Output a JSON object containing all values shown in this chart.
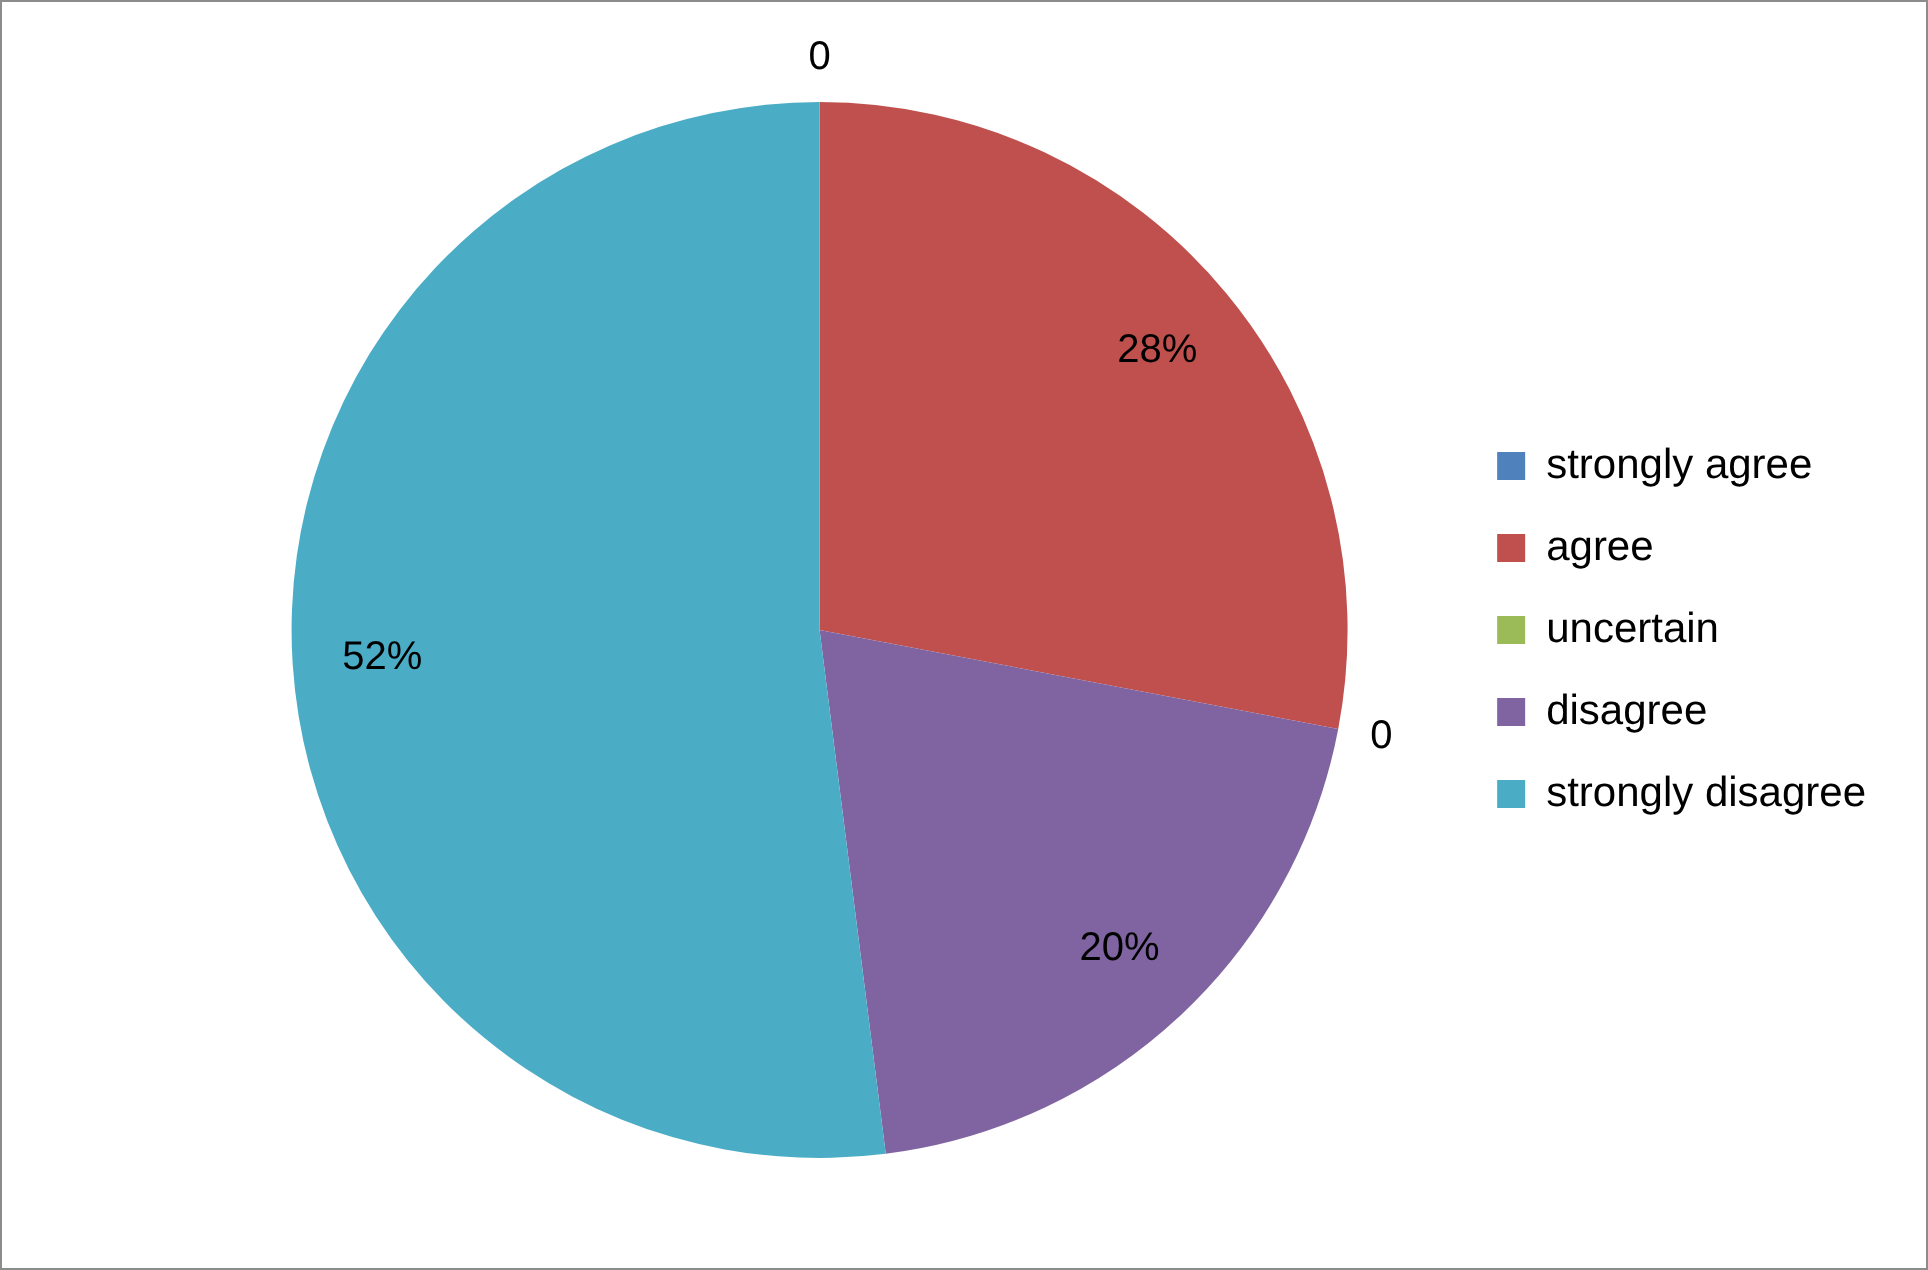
{
  "chart_data": {
    "type": "pie",
    "categories": [
      "strongly agree",
      "agree",
      "uncertain",
      "disagree",
      "strongly disagree"
    ],
    "values": [
      0,
      28,
      0,
      20,
      52
    ],
    "colors": [
      "#4f81bd",
      "#c0504d",
      "#9bbb59",
      "#8064a2",
      "#4bacc6"
    ],
    "value_labels": [
      "0",
      "28%",
      "0",
      "20%",
      "52%"
    ],
    "legend": "right"
  }
}
